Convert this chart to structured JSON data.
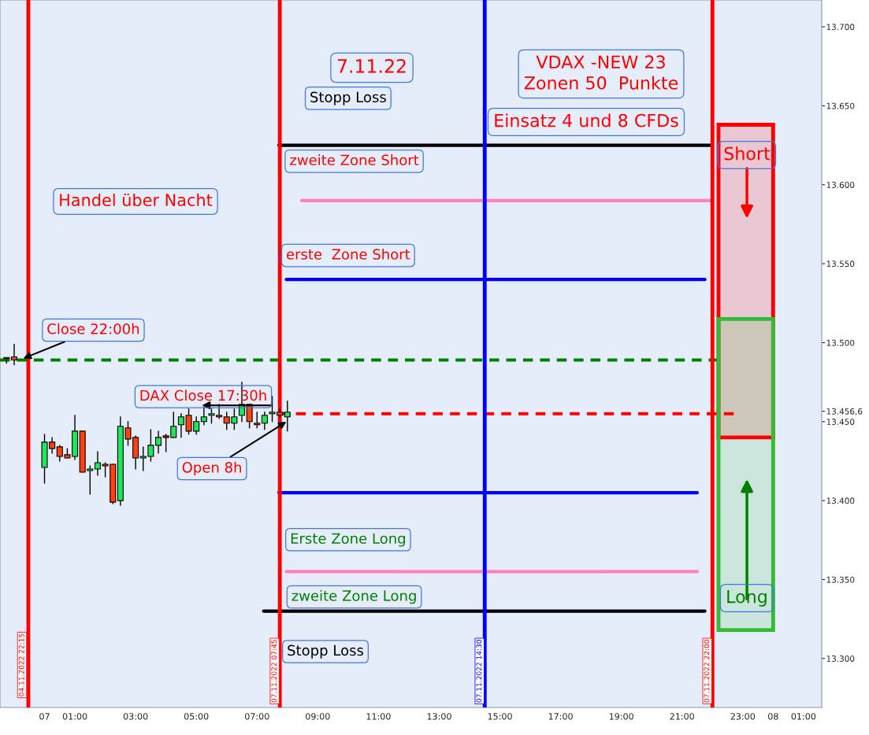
{
  "chart_data": {
    "type": "candlestick",
    "annotations": [
      "7.11.22",
      "VDAX -NEW 23\nZonen 50  Punkte",
      "Einsatz 4 und 8 CFDs",
      "Handel über Nacht",
      "Stopp Loss",
      "DAX Close 17:30h",
      "Short",
      "Long",
      "04.11.2022 22:15",
      {
        "text": "Stopp Loss",
        "x": "2022-11-07T10:00",
        "y": 13625
      },
      {
        "text": "zweite Zone Short",
        "x": "2022-11-07T10:12",
        "y": 13590
      },
      {
        "text": "erste  Zone Short",
        "x": "2022-11-07T10:00",
        "y": 13540
      },
      {
        "text": "Erste Zone Long",
        "x": "2022-11-07T10:00",
        "y": 13405
      },
      {
        "text": "zweite Zone Long",
        "x": "2022-11-07T10:12",
        "y": 13330
      },
      {
        "text": "Close 22:00h",
        "x": "2022-11-06T23:18",
        "y": 13490
      },
      {
        "text": "Open 8h",
        "x": "2022-11-07T07:58",
        "y": 13450
      }
    ],
    "series": [
      {
        "type": "bar",
        "x": [
          "2022-11-07T23:06"
        ],
        "base": [
          13440
        ],
        "values": [
          198
        ],
        "color": "#ff0000"
      },
      {
        "type": "bar",
        "x": [
          "2022-11-07T23:06"
        ],
        "base": [
          13318
        ],
        "values": [
          197
        ],
        "color": "#33bb33"
      },
      {
        "type": "line",
        "x": [
          "2022-11-07T07:43",
          "2022-11-07T21:56"
        ],
        "values": [
          13625,
          13625
        ],
        "color": "#000000"
      },
      {
        "type": "line",
        "x": [
          "2022-11-07T08:28",
          "2022-11-07T21:58"
        ],
        "values": [
          13590,
          13590
        ],
        "color": "#ff80c0"
      },
      {
        "type": "line",
        "x": [
          "2022-11-07T07:58",
          "2022-11-07T21:45"
        ],
        "values": [
          13540,
          13540
        ],
        "color": "#0000ff"
      },
      {
        "type": "line",
        "x": [
          "2022-11-06T22:32",
          "2022-11-07T22:12"
        ],
        "values": [
          13489,
          13489
        ],
        "color": "#008000",
        "line_style": "dashed"
      },
      {
        "type": "line",
        "x": [
          "2022-11-07T07:43",
          "2022-11-07T22:42"
        ],
        "values": [
          13455,
          13455
        ],
        "color": "#ff0000",
        "line_style": "dashed"
      },
      {
        "type": "line",
        "x": [
          "2022-11-07T07:43",
          "2022-11-07T21:30"
        ],
        "values": [
          13405,
          13405
        ],
        "color": "#0000ff"
      },
      {
        "type": "line",
        "x": [
          "2022-11-07T07:58",
          "2022-11-07T21:30"
        ],
        "values": [
          13355,
          13355
        ],
        "color": "#ff80c0"
      },
      {
        "type": "line",
        "x": [
          "2022-11-07T07:13",
          "2022-11-07T21:45"
        ],
        "values": [
          13330,
          13330
        ],
        "color": "#000000"
      },
      {
        "x": [
          "2022-11-06T22:45",
          "2022-11-06T23:00",
          "2022-11-07T00:00",
          "2022-11-07T00:15",
          "2022-11-07T00:30",
          "2022-11-07T00:45",
          "2022-11-07T01:00",
          "2022-11-07T01:15",
          "2022-11-07T01:30",
          "2022-11-07T01:45",
          "2022-11-07T02:00",
          "2022-11-07T02:15",
          "2022-11-07T02:30",
          "2022-11-07T02:45",
          "2022-11-07T03:00",
          "2022-11-07T03:15",
          "2022-11-07T03:30",
          "2022-11-07T03:45",
          "2022-11-07T04:00",
          "2022-11-07T04:15",
          "2022-11-07T04:30",
          "2022-11-07T04:45",
          "2022-11-07T05:00",
          "2022-11-07T05:15",
          "2022-11-07T05:30",
          "2022-11-07T05:45",
          "2022-11-07T06:00",
          "2022-11-07T06:15",
          "2022-11-07T06:30",
          "2022-11-07T06:45",
          "2022-11-07T07:00",
          "2022-11-07T07:15",
          "2022-11-07T07:30",
          "2022-11-07T07:45",
          "2022-11-07T08:00"
        ],
        "ohlc": [
          [
            13490,
            13490,
            13487,
            13490
          ],
          [
            13491,
            13499,
            13486,
            13489
          ],
          [
            13421,
            13442,
            13411,
            13437
          ],
          [
            13437,
            13440,
            13430,
            13433
          ],
          [
            13434,
            13435,
            13425,
            13428
          ],
          [
            13429,
            13433,
            13427,
            13427
          ],
          [
            13428,
            13454,
            13426,
            13444
          ],
          [
            13444,
            13444,
            13418,
            13418
          ],
          [
            13419,
            13422,
            13404,
            13420
          ],
          [
            13420,
            13431,
            13416,
            13424
          ],
          [
            13423,
            13424,
            13415,
            13422
          ],
          [
            13423,
            13423,
            13398,
            13399
          ],
          [
            13400,
            13453,
            13397,
            13447
          ],
          [
            13446,
            13450,
            13435,
            13439
          ],
          [
            13440,
            13441,
            13420,
            13427
          ],
          [
            13427,
            13434,
            13419,
            13428
          ],
          [
            13428,
            13445,
            13425,
            13435
          ],
          [
            13435,
            13444,
            13430,
            13440
          ],
          [
            13441,
            13442,
            13431,
            13440
          ],
          [
            13440,
            13456,
            13440,
            13447
          ],
          [
            13448,
            13455,
            13440,
            13453
          ],
          [
            13454,
            13458,
            13442,
            13444
          ],
          [
            13444,
            13453,
            13442,
            13450
          ],
          [
            13450,
            13459,
            13448,
            13453
          ],
          [
            13454,
            13458,
            13449,
            13455
          ],
          [
            13454,
            13461,
            13452,
            13453
          ],
          [
            13453,
            13456,
            13445,
            13449
          ],
          [
            13449,
            13458,
            13445,
            13453
          ],
          [
            13454,
            13475,
            13450,
            13461
          ],
          [
            13461,
            13461,
            13446,
            13450
          ],
          [
            13449,
            13456,
            13446,
            13448
          ],
          [
            13449,
            13456,
            13445,
            13454
          ],
          [
            13455,
            13466,
            13450,
            13456
          ],
          [
            13456,
            13458,
            13453,
            13454
          ],
          [
            13453,
            13463,
            13444,
            13456
          ]
        ],
        "colors": [
          "#1ee85a",
          "#ff4010",
          "#1ee85a",
          "#ff4010",
          "#ff4010",
          "#ff4010",
          "#1ee85a",
          "#ff4010",
          "#1ee85a",
          "#1ee85a",
          "#ff4010",
          "#ff4010",
          "#1ee85a",
          "#ff4010",
          "#ff4010",
          "#1ee85a",
          "#1ee85a",
          "#1ee85a",
          "#ff4010",
          "#1ee85a",
          "#1ee85a",
          "#ff4010",
          "#1ee85a",
          "#1ee85a",
          "#1ee85a",
          "#ff4010",
          "#ff4010",
          "#1ee85a",
          "#1ee85a",
          "#ff4010",
          "#ff4010",
          "#1ee85a",
          "#1ee85a",
          "#ff4010",
          "#1ee85a"
        ]
      }
    ],
    "ref_lines": [
      {
        "axis": "x",
        "value": "2022-11-06T23:28",
        "color": "#ff0000"
      },
      {
        "axis": "x",
        "value": "2022-11-07T07:45",
        "label": "07.11.2022 07:45",
        "color": "#ff0000"
      },
      {
        "axis": "x",
        "value": "2022-11-07T14:30",
        "label": "07.11.2022 14:30",
        "color": "#0000ff"
      },
      {
        "axis": "x",
        "value": "2022-11-07T22:00",
        "label": "07.11.2022 22:00",
        "color": "#ff0000"
      }
    ],
    "xlim": [
      "2022-11-06T22:32",
      "2022-11-08T01:36"
    ],
    "ylim": [
      13269,
      13717
    ],
    "xticks": [
      {
        "value": "2022-11-07T00:00",
        "label": "07"
      },
      {
        "value": "2022-11-07T01:00",
        "label": "01:00"
      },
      {
        "value": "2022-11-07T03:00",
        "label": "03:00"
      },
      {
        "value": "2022-11-07T05:00",
        "label": "05:00"
      },
      {
        "value": "2022-11-07T07:00",
        "label": "07:00"
      },
      {
        "value": "2022-11-07T09:00",
        "label": "09:00"
      },
      {
        "value": "2022-11-07T11:00",
        "label": "11:00"
      },
      {
        "value": "2022-11-07T13:00",
        "label": "13:00"
      },
      {
        "value": "2022-11-07T15:00",
        "label": "15:00"
      },
      {
        "value": "2022-11-07T17:00",
        "label": "17:00"
      },
      {
        "value": "2022-11-07T19:00",
        "label": "19:00"
      },
      {
        "value": "2022-11-07T21:00",
        "label": "21:00"
      },
      {
        "value": "2022-11-07T23:00",
        "label": "23:00"
      },
      {
        "value": "2022-11-08T00:00",
        "label": "08"
      },
      {
        "value": "2022-11-08T01:00",
        "label": "01:00"
      }
    ],
    "yticks": [
      {
        "value": 13300,
        "label": "13.300"
      },
      {
        "value": 13350,
        "label": "13.350"
      },
      {
        "value": 13400,
        "label": "13.400"
      },
      {
        "value": 13450,
        "label": "13.450"
      },
      {
        "value": 13456.6,
        "label": "13.456,6"
      },
      {
        "value": 13500,
        "label": "13.500"
      },
      {
        "value": 13550,
        "label": "13.550"
      },
      {
        "value": 13600,
        "label": "13.600"
      },
      {
        "value": 13650,
        "label": "13.650"
      },
      {
        "value": 13700,
        "label": "13.700"
      }
    ],
    "grid": false,
    "legend": false
  }
}
